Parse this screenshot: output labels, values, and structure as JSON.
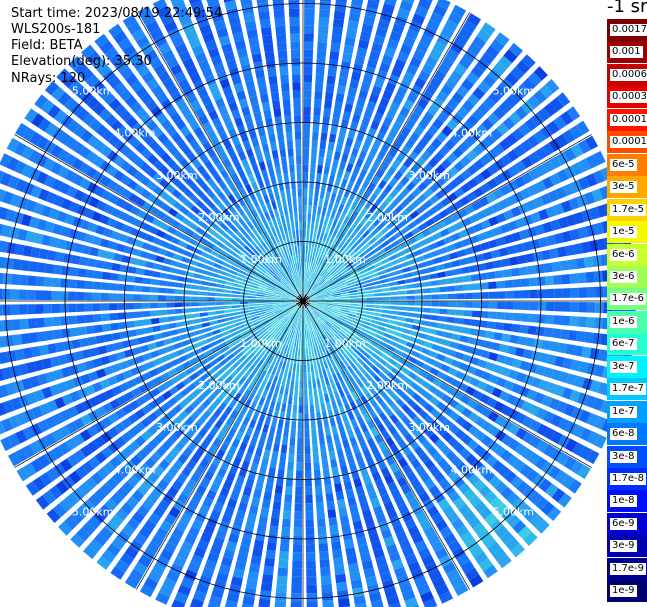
{
  "info": {
    "start_time": "Start time: 2023/08/19 22:49:54",
    "instrument": "WLS200s-181",
    "field": "Field: BETA",
    "elevation": "Elevation(deg): 35.30",
    "nrays": "NRays: 120"
  },
  "colorbar": {
    "title": "-1 sr",
    "labels": [
      "0.0017",
      "0.001",
      "0.0006",
      "0.0003",
      "0.00017",
      "0.0001",
      "6e-5",
      "3e-5",
      "1.7e-5",
      "1e-5",
      "6e-6",
      "3e-6",
      "1.7e-6",
      "1e-6",
      "6e-7",
      "3e-7",
      "1.7e-7",
      "1e-7",
      "6e-8",
      "3e-8",
      "1.7e-8",
      "1e-8",
      "6e-9",
      "3e-9",
      "1.7e-9",
      "1e-9"
    ],
    "colors": [
      "#7f0000",
      "#9c0000",
      "#c40000",
      "#e80000",
      "#ff1400",
      "#ff4a00",
      "#ff7e00",
      "#ffa800",
      "#ffd000",
      "#f4f800",
      "#c8ff2e",
      "#a0ff56",
      "#76ff80",
      "#4cffaa",
      "#26ffd0",
      "#00f2ff",
      "#00c8ff",
      "#00a0ff",
      "#0078ff",
      "#0050ff",
      "#0030ff",
      "#0010f4",
      "#0000d4",
      "#0000b0",
      "#00008c",
      "#000070"
    ]
  },
  "chart_data": {
    "type": "heatmap",
    "projection": "polar PPI (lidar scan)",
    "field": "BETA",
    "units": "-1 sr",
    "n_rays": 120,
    "elevation_deg": 35.3,
    "range_rings_km": [
      1.0,
      2.0,
      3.0,
      4.0,
      5.0
    ],
    "range_ring_labels": [
      "1.00km",
      "2.00km",
      "3.00km",
      "4.00km",
      "5.00km"
    ],
    "max_range_km": 5.6,
    "spokes_every_deg": 30,
    "dominant_value_range": [
      1e-08,
      1e-07
    ],
    "near_range_value_range": [
      1.7e-07,
      3e-07
    ]
  }
}
